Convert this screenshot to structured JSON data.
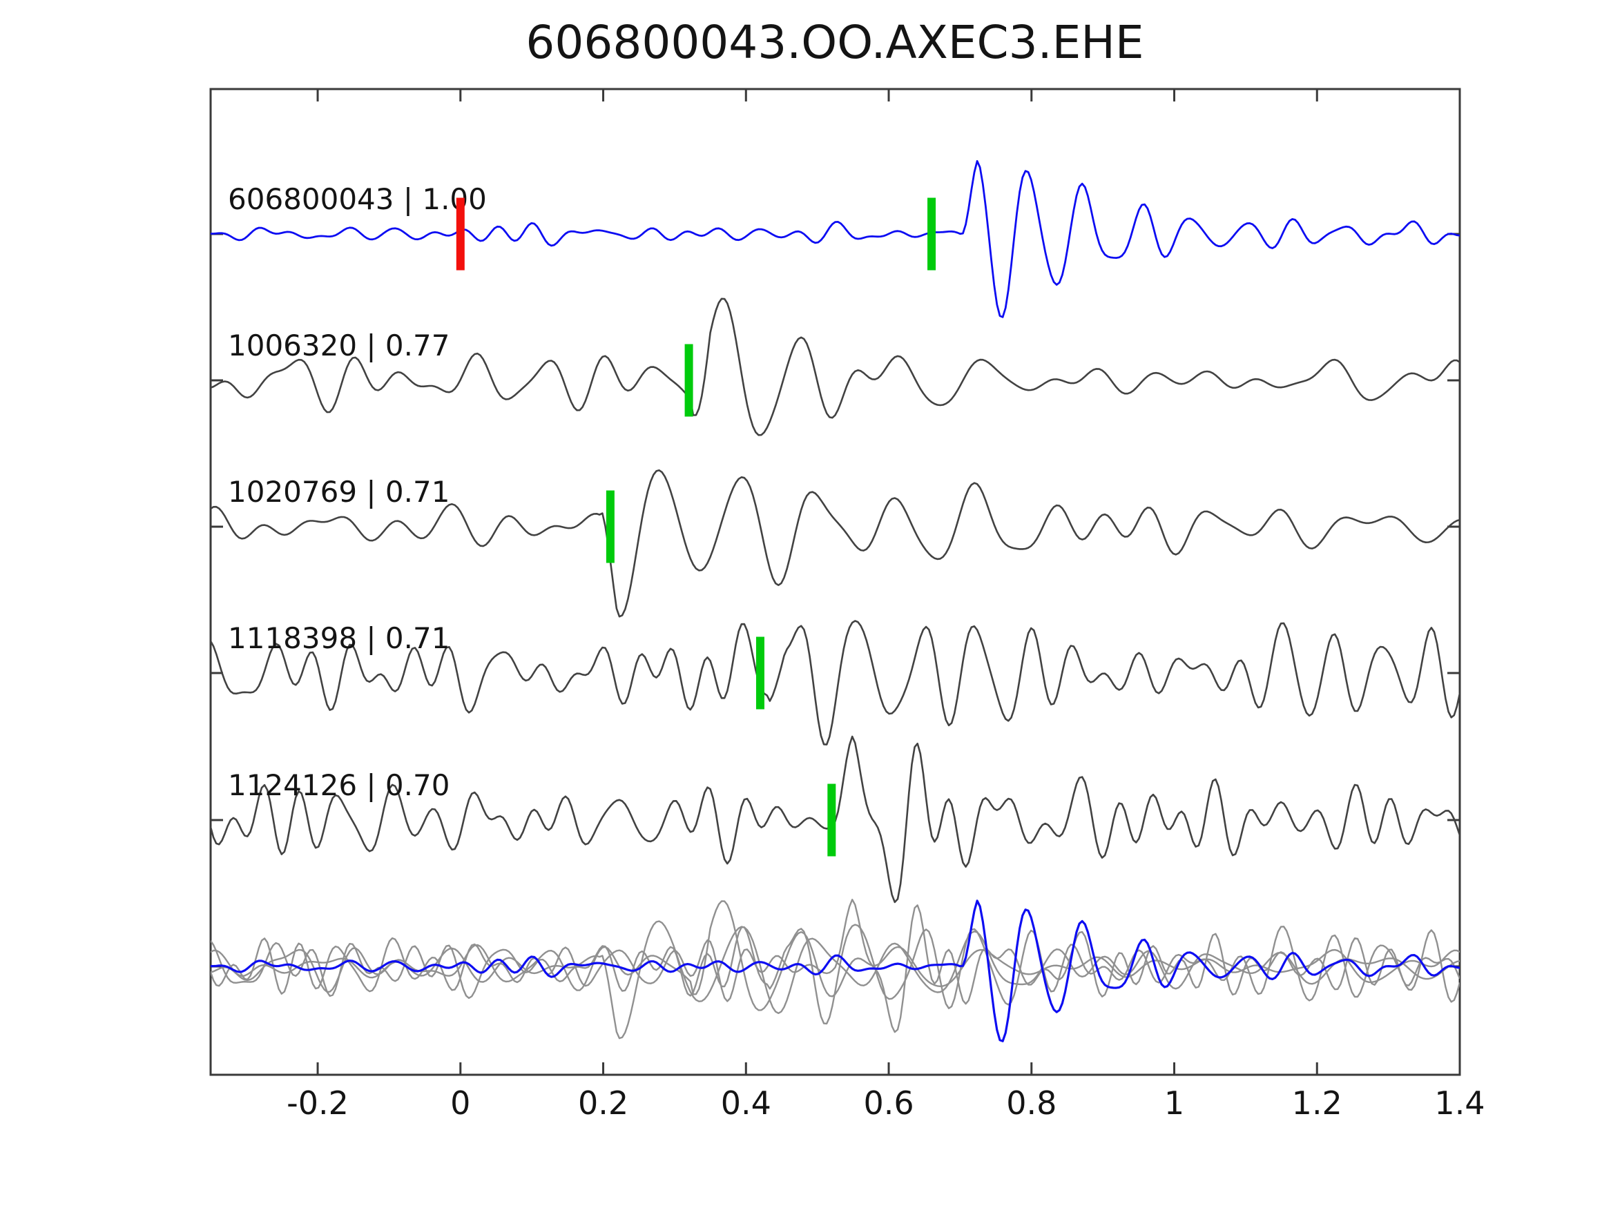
{
  "figure": {
    "title": "606800043.OO.AXEC3.EHE"
  },
  "chart_data": {
    "type": "line",
    "title": "606800043.OO.AXEC3.EHE",
    "subtitle": "",
    "xlabel": "",
    "ylabel": "",
    "grid": false,
    "legend": "none",
    "x_range": [
      -0.35,
      1.4
    ],
    "x_ticks": [
      -0.2,
      0,
      0.2,
      0.4,
      0.6,
      0.8,
      1,
      1.2,
      1.4
    ],
    "x_tick_labels": [
      "-0.2",
      "0",
      "0.2",
      "0.4",
      "0.6",
      "0.8",
      "1",
      "1.2",
      "1.4"
    ],
    "colors": {
      "template": "#0d0df2",
      "detection": "#424242",
      "overlay_gray": "#909090",
      "pick_marker": "#00cb0c",
      "template_marker": "#f3100c",
      "frame": "#3a3a3a",
      "text": "#141414"
    },
    "traces": [
      {
        "id": "606800043",
        "correlation": "1.00",
        "label": "606800043 | 1.00",
        "kind": "template",
        "color_key": "template",
        "template_marker_time": 0.0,
        "pick_marker_time": 0.66,
        "synth": {
          "seed": 7,
          "noise_amp": 14,
          "fmin": 6,
          "fmax": 24,
          "ncomp": 14,
          "event": {
            "t0": 0.7,
            "amp": 138,
            "freq": 13,
            "decay": 0.2,
            "phase": 0,
            "coda": 2.0
          }
        }
      },
      {
        "id": "1006320",
        "correlation": "0.77",
        "label": "1006320 | 0.77",
        "kind": "detection",
        "color_key": "detection",
        "pick_marker_time": 0.32,
        "synth": {
          "seed": 23,
          "noise_amp": 36,
          "fmin": 5,
          "fmax": 18,
          "ncomp": 14,
          "event": {
            "t0": 0.325,
            "amp": 118,
            "freq": 8,
            "decay": 0.28,
            "phase": 0,
            "coda": 0.6
          }
        }
      },
      {
        "id": "1020769",
        "correlation": "0.71",
        "label": "1020769 | 0.71",
        "kind": "detection",
        "color_key": "detection",
        "pick_marker_time": 0.21,
        "synth": {
          "seed": 41,
          "noise_amp": 32,
          "fmin": 5,
          "fmax": 18,
          "ncomp": 14,
          "event": {
            "t0": 0.195,
            "amp": 128,
            "freq": 9,
            "decay": 0.32,
            "phase": 3.14159,
            "coda": 0.6
          }
        }
      },
      {
        "id": "1118398",
        "correlation": "0.71",
        "label": "1118398 | 0.71",
        "kind": "detection",
        "color_key": "detection",
        "pick_marker_time": 0.42,
        "synth": {
          "seed": 59,
          "noise_amp": 78,
          "fmin": 6,
          "fmax": 26,
          "ncomp": 16,
          "event": {
            "t0": 0.43,
            "amp": 95,
            "freq": 10,
            "decay": 0.22,
            "phase": 0,
            "coda": 0.3
          }
        }
      },
      {
        "id": "1124126",
        "correlation": "0.70",
        "label": "1124126 | 0.70",
        "kind": "detection",
        "color_key": "detection",
        "pick_marker_time": 0.52,
        "synth": {
          "seed": 73,
          "noise_amp": 54,
          "fmin": 6,
          "fmax": 26,
          "ncomp": 16,
          "event": {
            "t0": 0.525,
            "amp": 130,
            "freq": 9.5,
            "decay": 0.16,
            "phase": 0,
            "coda": 0.5
          }
        }
      }
    ],
    "overlay_panel": {
      "description": "all detection traces overlaid in gray with template trace highlighted in blue",
      "gray_trace_ids": [
        "1006320",
        "1020769",
        "1118398",
        "1124126"
      ],
      "highlight_trace_id": "606800043",
      "gray_scale": 0.8,
      "highlight_scale": 0.9
    }
  }
}
